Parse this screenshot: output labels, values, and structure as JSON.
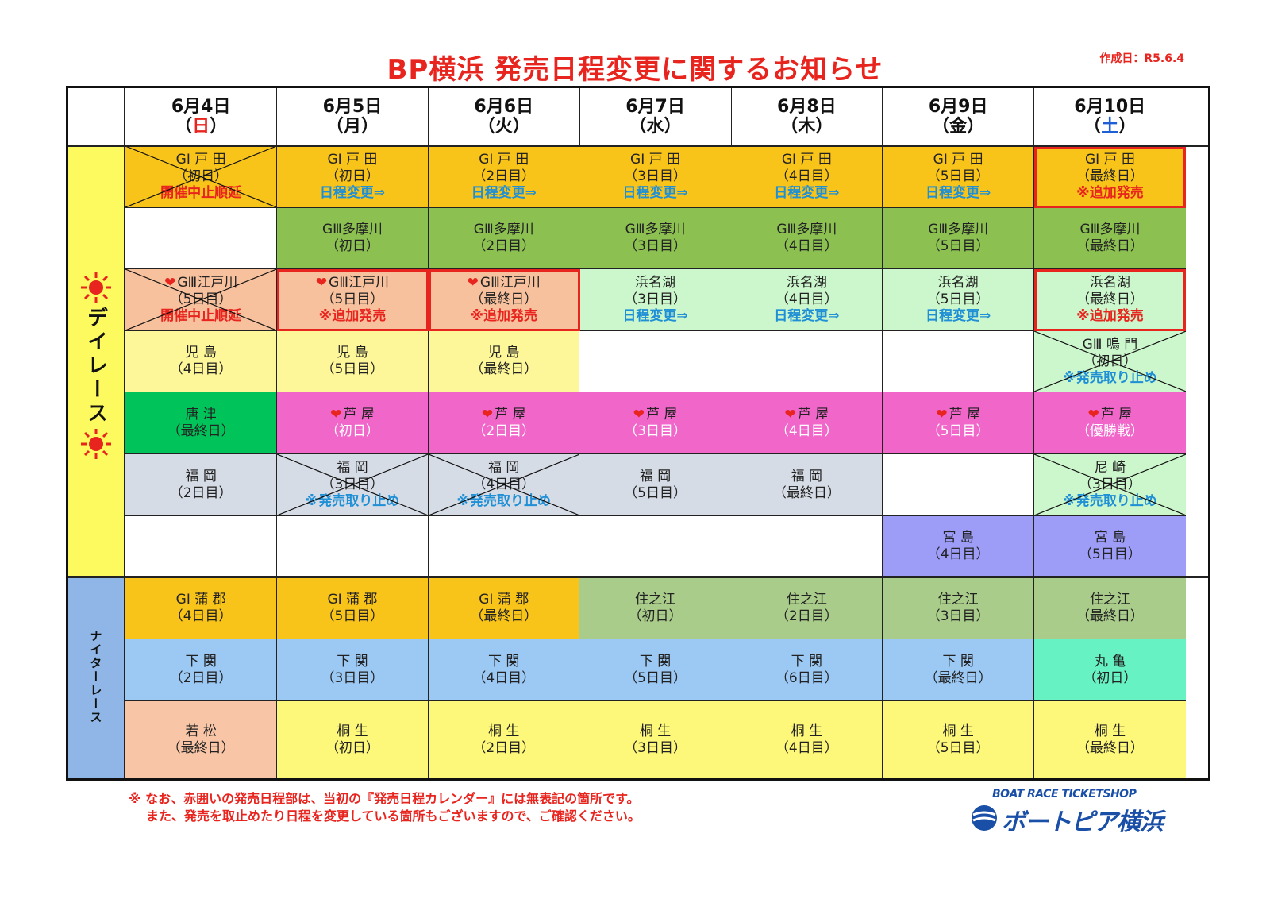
{
  "title": "BP横浜 発売日程変更に関するお知らせ",
  "created_date": "作成日：R5.6.4",
  "sidebar": {
    "day_label": "デイレース",
    "night_label": "ナイターレース"
  },
  "days": [
    {
      "date": "6月4日",
      "weekday": "日",
      "color": "#e8241e"
    },
    {
      "date": "6月5日",
      "weekday": "月",
      "color": "#111111"
    },
    {
      "date": "6月6日",
      "weekday": "火",
      "color": "#111111"
    },
    {
      "date": "6月7日",
      "weekday": "水",
      "color": "#111111"
    },
    {
      "date": "6月8日",
      "weekday": "木",
      "color": "#111111"
    },
    {
      "date": "6月9日",
      "weekday": "金",
      "color": "#111111"
    },
    {
      "date": "6月10日",
      "weekday": "土",
      "color": "#1f5fd6"
    }
  ],
  "rows": [
    [
      {
        "name": "GⅠ 戸 田",
        "day": "（初日）",
        "note": "開催中止順延",
        "note_color": "red",
        "bg": "#f9c41a",
        "cross": true
      },
      {
        "name": "GⅠ 戸 田",
        "day": "（初日）",
        "note": "日程変更⇒",
        "note_color": "blue",
        "bg": "#f9c41a"
      },
      {
        "name": "GⅠ 戸 田",
        "day": "（2日目）",
        "note": "日程変更⇒",
        "note_color": "blue",
        "bg": "#f9c41a"
      },
      {
        "name": "GⅠ 戸 田",
        "day": "（3日目）",
        "note": "日程変更⇒",
        "note_color": "blue",
        "bg": "#f9c41a"
      },
      {
        "name": "GⅠ 戸 田",
        "day": "（4日目）",
        "note": "日程変更⇒",
        "note_color": "blue",
        "bg": "#f9c41a"
      },
      {
        "name": "GⅠ 戸 田",
        "day": "（5日目）",
        "note": "日程変更⇒",
        "note_color": "blue",
        "bg": "#f9c41a"
      },
      {
        "name": "GⅠ 戸 田",
        "day": "（最終日）",
        "note": "※追加発売",
        "note_color": "red",
        "bg": "#f9c41a",
        "highlight": true
      }
    ],
    [
      {
        "bg": "#ffffff"
      },
      {
        "name": "GⅢ多摩川",
        "day": "（初日）",
        "bg": "#8cc152"
      },
      {
        "name": "GⅢ多摩川",
        "day": "（2日目）",
        "bg": "#8cc152"
      },
      {
        "name": "GⅢ多摩川",
        "day": "（3日目）",
        "bg": "#8cc152"
      },
      {
        "name": "GⅢ多摩川",
        "day": "（4日目）",
        "bg": "#8cc152"
      },
      {
        "name": "GⅢ多摩川",
        "day": "（5日目）",
        "bg": "#8cc152"
      },
      {
        "name": "GⅢ多摩川",
        "day": "（最終日）",
        "bg": "#8cc152"
      }
    ],
    [
      {
        "name": "GⅢ江戸川",
        "heart": true,
        "day": "（5日目）",
        "note": "開催中止順延",
        "note_color": "red",
        "bg": "#f8c19d",
        "cross": true
      },
      {
        "name": "GⅢ江戸川",
        "heart": true,
        "day": "（5日目）",
        "note": "※追加発売",
        "note_color": "red",
        "bg": "#f8c19d",
        "highlight": true
      },
      {
        "name": "GⅢ江戸川",
        "heart": true,
        "day": "（最終日）",
        "note": "※追加発売",
        "note_color": "red",
        "bg": "#f8c19d",
        "highlight": true
      },
      {
        "name": "浜名湖",
        "day": "（3日目）",
        "note": "日程変更⇒",
        "note_color": "blue",
        "bg": "#ccf6cc"
      },
      {
        "name": "浜名湖",
        "day": "（4日目）",
        "note": "日程変更⇒",
        "note_color": "blue",
        "bg": "#ccf6cc"
      },
      {
        "name": "浜名湖",
        "day": "（5日目）",
        "note": "日程変更⇒",
        "note_color": "blue",
        "bg": "#ccf6cc"
      },
      {
        "name": "浜名湖",
        "day": "（最終日）",
        "note": "※追加発売",
        "note_color": "red",
        "bg": "#ccf6cc",
        "highlight": true
      }
    ],
    [
      {
        "name": "児 島",
        "day": "（4日目）",
        "bg": "#fdf79a"
      },
      {
        "name": "児 島",
        "day": "（5日目）",
        "bg": "#fdf79a"
      },
      {
        "name": "児 島",
        "day": "（最終日）",
        "bg": "#fdf79a"
      },
      {
        "bg": "#ffffff"
      },
      {
        "bg": "#ffffff"
      },
      {
        "bg": "#ffffff"
      },
      {
        "name": "GⅢ 鳴 門",
        "day": "（初日）",
        "note": "※発売取り止め",
        "note_color": "blue",
        "bg": "#ccf6cc",
        "cross": true
      }
    ],
    [
      {
        "name": "唐 津",
        "day": "（最終日）",
        "bg": "#00c45a"
      },
      {
        "name": "芦 屋",
        "heart": true,
        "day": "（初日）",
        "bg": "#f066c9",
        "day_color": "white"
      },
      {
        "name": "芦 屋",
        "heart": true,
        "day": "（2日目）",
        "bg": "#f066c9",
        "day_color": "white"
      },
      {
        "name": "芦 屋",
        "heart": true,
        "day": "（3日目）",
        "bg": "#f066c9",
        "day_color": "white"
      },
      {
        "name": "芦 屋",
        "heart": true,
        "day": "（4日目）",
        "bg": "#f066c9",
        "day_color": "white"
      },
      {
        "name": "芦 屋",
        "heart": true,
        "day": "（5日目）",
        "bg": "#f066c9",
        "day_color": "white"
      },
      {
        "name": "芦 屋",
        "heart": true,
        "day": "（優勝戦）",
        "bg": "#f066c9",
        "day_color": "white"
      }
    ],
    [
      {
        "name": "福 岡",
        "day": "（2日目）",
        "bg": "#d6dce6"
      },
      {
        "name": "福 岡",
        "day": "（3日目）",
        "note": "※発売取り止め",
        "note_color": "blue",
        "bg": "#d6dce6",
        "cross": true
      },
      {
        "name": "福 岡",
        "day": "（4日目）",
        "note": "※発売取り止め",
        "note_color": "blue",
        "bg": "#d6dce6",
        "cross": true
      },
      {
        "name": "福 岡",
        "day": "（5日目）",
        "bg": "#d6dce6"
      },
      {
        "name": "福 岡",
        "day": "（最終日）",
        "bg": "#d6dce6"
      },
      {
        "bg": "#ffffff"
      },
      {
        "name": "尼 崎",
        "day": "（3日目）",
        "note": "※発売取り止め",
        "note_color": "blue",
        "bg": "#ccf6cc",
        "cross": true
      }
    ],
    [
      {
        "bg": "#ffffff"
      },
      {
        "bg": "#ffffff"
      },
      {
        "bg": "#ffffff"
      },
      {
        "bg": "#ffffff"
      },
      {
        "bg": "#ffffff"
      },
      {
        "name": "宮 島",
        "day": "（4日目）",
        "bg": "#9d9df7"
      },
      {
        "name": "宮 島",
        "day": "（5日目）",
        "bg": "#9d9df7"
      }
    ],
    [
      {
        "name": "GⅠ 蒲 郡",
        "day": "（4日目）",
        "bg": "#f9c41a"
      },
      {
        "name": "GⅠ 蒲 郡",
        "day": "（5日目）",
        "bg": "#f9c41a"
      },
      {
        "name": "GⅠ 蒲 郡",
        "day": "（最終日）",
        "bg": "#f9c41a"
      },
      {
        "name": "住之江",
        "day": "（初日）",
        "bg": "#a9cc8a"
      },
      {
        "name": "住之江",
        "day": "（2日目）",
        "bg": "#a9cc8a"
      },
      {
        "name": "住之江",
        "day": "（3日目）",
        "bg": "#a9cc8a"
      },
      {
        "name": "住之江",
        "day": "（最終日）",
        "bg": "#a9cc8a"
      }
    ],
    [
      {
        "name": "下 関",
        "day": "（2日目）",
        "bg": "#9cc8f4"
      },
      {
        "name": "下 関",
        "day": "（3日目）",
        "bg": "#9cc8f4"
      },
      {
        "name": "下 関",
        "day": "（4日目）",
        "bg": "#9cc8f4"
      },
      {
        "name": "下 関",
        "day": "（5日目）",
        "bg": "#9cc8f4"
      },
      {
        "name": "下 関",
        "day": "（6日目）",
        "bg": "#9cc8f4"
      },
      {
        "name": "下 関",
        "day": "（最終日）",
        "bg": "#9cc8f4"
      },
      {
        "name": "丸 亀",
        "day": "（初日）",
        "bg": "#66f2c2"
      }
    ],
    [
      {
        "name": "若 松",
        "day": "（最終日）",
        "bg": "#f8c6a6"
      },
      {
        "name": "桐 生",
        "day": "（初日）",
        "bg": "#fdf77a"
      },
      {
        "name": "桐 生",
        "day": "（2日目）",
        "bg": "#fdf77a"
      },
      {
        "name": "桐 生",
        "day": "（3日目）",
        "bg": "#fdf77a"
      },
      {
        "name": "桐 生",
        "day": "（4日目）",
        "bg": "#fdf77a"
      },
      {
        "name": "桐 生",
        "day": "（5日目）",
        "bg": "#fdf77a"
      },
      {
        "name": "桐 生",
        "day": "（最終日）",
        "bg": "#fdf77a"
      }
    ]
  ],
  "footnote": {
    "line1": "※ なお、赤囲いの発売日程部は、当初の『発売日程カレンダー』には無表記の箇所です。",
    "line2": "また、発売を取止めたり日程を変更している箇所もございますので、ご確認ください。"
  },
  "logo": {
    "tagline": "BOAT RACE TICKETSHOP",
    "name": "ボートピア横浜"
  },
  "colors": {
    "accent_red": "#e8241e",
    "accent_blue": "#1f8fd6",
    "sidebar_day": "#fdfa60",
    "sidebar_night": "#8fb6e6"
  },
  "icons": {
    "day": "sun-icon",
    "night": "crescent-moon-icon",
    "heart": "heart-icon"
  }
}
